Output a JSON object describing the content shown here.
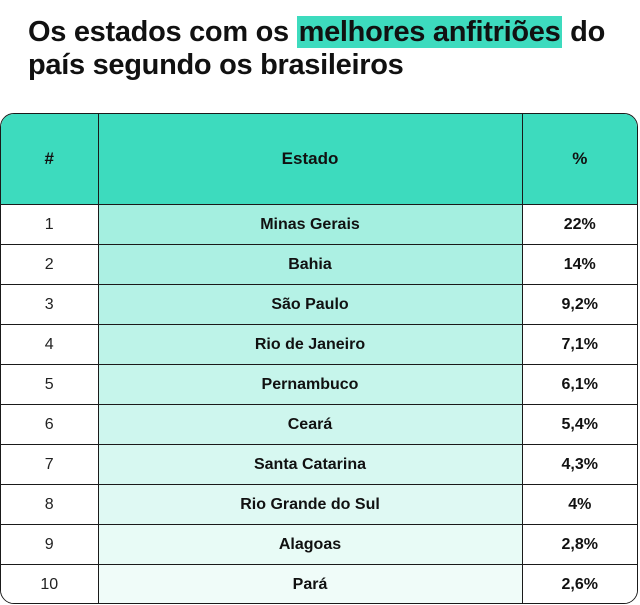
{
  "title": {
    "part1": "Os estados com os ",
    "highlight": "melhores anfitriões",
    "part2": " do país segundo os brasileiros"
  },
  "colors": {
    "accent": "#3ddbbe",
    "text": "#111111",
    "border": "#1a1a1a"
  },
  "table": {
    "headers": {
      "rank": "#",
      "state": "Estado",
      "percent": "%"
    },
    "rows": [
      {
        "rank": "1",
        "state": "Minas Gerais",
        "percent": "22%"
      },
      {
        "rank": "2",
        "state": "Bahia",
        "percent": "14%"
      },
      {
        "rank": "3",
        "state": "São Paulo",
        "percent": "9,2%"
      },
      {
        "rank": "4",
        "state": "Rio de Janeiro",
        "percent": "7,1%"
      },
      {
        "rank": "5",
        "state": "Pernambuco",
        "percent": "6,1%"
      },
      {
        "rank": "6",
        "state": "Ceará",
        "percent": "5,4%"
      },
      {
        "rank": "7",
        "state": "Santa Catarina",
        "percent": "4,3%"
      },
      {
        "rank": "8",
        "state": "Rio Grande do Sul",
        "percent": "4%"
      },
      {
        "rank": "9",
        "state": "Alagoas",
        "percent": "2,8%"
      },
      {
        "rank": "10",
        "state": "Pará",
        "percent": "2,6%"
      }
    ]
  },
  "chart_data": {
    "type": "table",
    "columns": [
      "#",
      "Estado",
      "%"
    ],
    "categories": [
      "Minas Gerais",
      "Bahia",
      "São Paulo",
      "Rio de Janeiro",
      "Pernambuco",
      "Ceará",
      "Santa Catarina",
      "Rio Grande do Sul",
      "Alagoas",
      "Pará"
    ],
    "values": [
      22,
      14,
      9.2,
      7.1,
      6.1,
      5.4,
      4.3,
      4,
      2.8,
      2.6
    ],
    "title": "Os estados com os melhores anfitriões do país segundo os brasileiros"
  }
}
